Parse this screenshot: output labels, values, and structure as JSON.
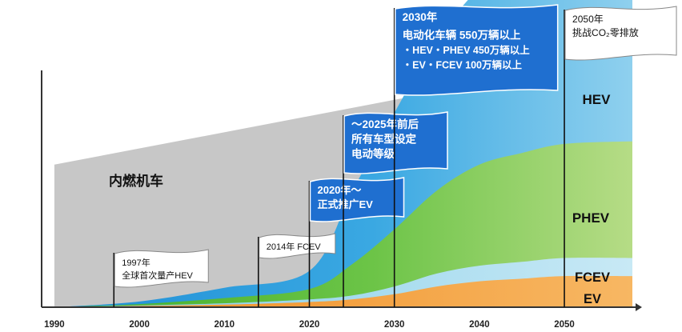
{
  "chart_data": {
    "type": "area",
    "x_ticks": [
      "1990",
      "2000",
      "2010",
      "2020",
      "2030",
      "2040",
      "2050"
    ],
    "x": [
      1990,
      2000,
      2010,
      2020,
      2025,
      2030,
      2035,
      2040,
      2045,
      2050,
      2058
    ],
    "series": [
      {
        "name": "EV",
        "values": [
          0,
          0.5,
          1,
          2,
          3,
          5,
          8,
          10,
          11,
          12,
          12
        ]
      },
      {
        "name": "FCEV",
        "values": [
          0,
          0.2,
          0.5,
          1,
          1.5,
          3,
          5,
          6,
          6.5,
          7,
          7
        ]
      },
      {
        "name": "PHEV",
        "values": [
          0,
          0.5,
          2,
          4,
          12,
          22,
          32,
          39,
          42,
          44,
          45
        ]
      },
      {
        "name": "HEV",
        "values": [
          0,
          1,
          4,
          7,
          28,
          45,
          58,
          68,
          74,
          76,
          78
        ]
      }
    ],
    "ice_label": "内燃机车",
    "ice_envelope": [
      [
        1990,
        55
      ],
      [
        2030,
        80
      ],
      [
        2035,
        83
      ],
      [
        2058,
        85
      ]
    ],
    "ylim": [
      0,
      100
    ],
    "labels": {
      "HEV": "HEV",
      "PHEV": "PHEV",
      "FCEV": "FCEV",
      "EV": "EV"
    },
    "markers": [
      {
        "year": 1997,
        "lines": [
          "1997年",
          "全球首次量产HEV"
        ],
        "style": "white"
      },
      {
        "year": 2014,
        "lines": [
          "2014年  FCEV"
        ],
        "style": "white"
      },
      {
        "year": 2020,
        "lines": [
          "2020年～",
          "正式推广EV"
        ],
        "style": "blue"
      },
      {
        "year": 2024,
        "lines": [
          "～2025年前后",
          "所有车型设定",
          "电动等级"
        ],
        "style": "blue"
      },
      {
        "year": 2030,
        "lines": [
          "2030年",
          "电动化车辆  550万辆以上",
          "・HEV・PHEV  450万辆以上",
          "・EV・FCEV    100万辆以上"
        ],
        "style": "blue"
      },
      {
        "year": 2050,
        "lines": [
          "2050年",
          "挑战CO₂零排放"
        ],
        "style": "white"
      }
    ],
    "colors": {
      "ice": "#c7c7c7",
      "hev": "#35a7e0",
      "hev_light": "#a9d8ef",
      "phev": "#5bbf3a",
      "phev_light": "#b9dd8a",
      "fcev": "#9fd7ea",
      "ev": "#f39a2b",
      "flag_blue": "#1f6fd0",
      "axis": "#333333"
    }
  }
}
